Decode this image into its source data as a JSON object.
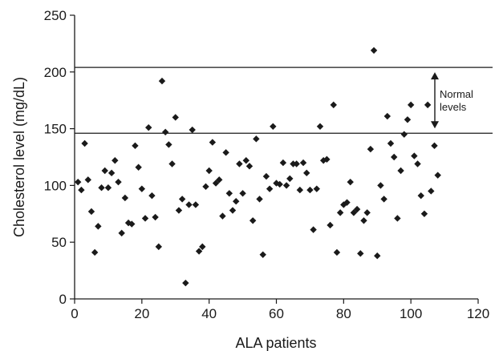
{
  "chart_data": {
    "type": "scatter",
    "xlabel": "ALA patients",
    "ylabel": "Cholesterol level (mg/dL)",
    "xlim": [
      0,
      120
    ],
    "ylim": [
      0,
      250
    ],
    "xticks": [
      0,
      20,
      40,
      60,
      80,
      100,
      120
    ],
    "yticks": [
      0,
      50,
      100,
      150,
      200,
      250
    ],
    "grid": false,
    "marker": "diamond",
    "marker_color": "#1a1a1a",
    "reference_lines": [
      {
        "y": 146
      },
      {
        "y": 204
      }
    ],
    "annotation": {
      "lines": [
        "Normal",
        "levels"
      ],
      "arrow": "double-headed",
      "y_range": [
        146,
        204
      ]
    },
    "series": [
      {
        "x": [
          1,
          2,
          3,
          4,
          5,
          6,
          7,
          8,
          9,
          10,
          11,
          12,
          13,
          14,
          15,
          16,
          17,
          18,
          19,
          20,
          21,
          22,
          23,
          24,
          25,
          26,
          27,
          28,
          29,
          30,
          31,
          32,
          33,
          34,
          35,
          36,
          37,
          38,
          39,
          40,
          41,
          42,
          43,
          44,
          45,
          46,
          47,
          48,
          49,
          50,
          51,
          52,
          53,
          54,
          55,
          56,
          57,
          58,
          59,
          60,
          61,
          62,
          63,
          64,
          65,
          66,
          67,
          68,
          69,
          70,
          71,
          72,
          73,
          74,
          75,
          76,
          77,
          78,
          79,
          80,
          81,
          82,
          83,
          84,
          85,
          86,
          87,
          88,
          89,
          90,
          91,
          92,
          93,
          94,
          95,
          96,
          97,
          98,
          99,
          100,
          101,
          102,
          103,
          104,
          105,
          106,
          107,
          108
        ],
        "y": [
          103,
          96,
          137,
          105,
          77,
          41,
          64,
          98,
          113,
          98,
          111,
          122,
          103,
          58,
          89,
          67,
          66,
          135,
          116,
          97,
          71,
          151,
          91,
          72,
          46,
          192,
          147,
          136,
          119,
          160,
          78,
          88,
          14,
          83,
          149,
          83,
          42,
          46,
          99,
          113,
          138,
          102,
          105,
          73,
          129,
          93,
          78,
          86,
          119,
          93,
          122,
          117,
          69,
          141,
          88,
          39,
          108,
          97,
          152,
          102,
          101,
          120,
          100,
          106,
          119,
          119,
          96,
          120,
          111,
          96,
          61,
          97,
          152,
          122,
          123,
          65,
          171,
          41,
          76,
          83,
          85,
          103,
          76,
          79,
          40,
          69,
          76,
          132,
          219,
          38,
          100,
          88,
          161,
          137,
          125,
          71,
          113,
          145,
          158,
          171,
          126,
          119,
          91,
          75,
          171,
          95,
          135,
          109
        ]
      }
    ]
  }
}
